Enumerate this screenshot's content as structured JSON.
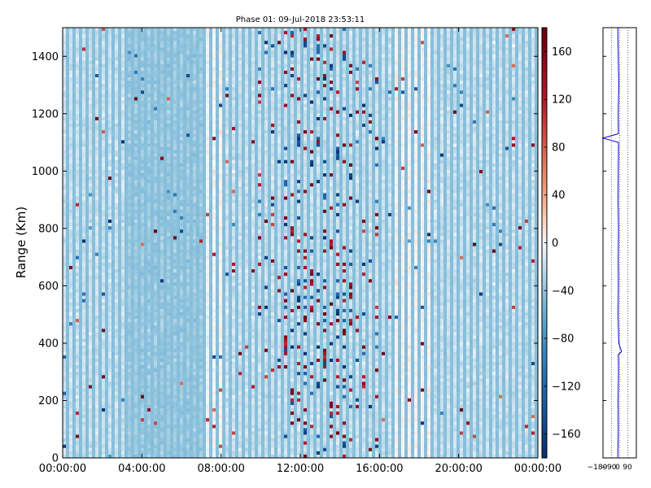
{
  "chart_data": [
    {
      "type": "heatmap",
      "title": "Phase 01: 09-Jul-2018 23:53:11",
      "xlabel": "",
      "ylabel": "Range (Km)",
      "x_ticks": [
        "00:00:00",
        "04:00:00",
        "08:00:00",
        "12:00:00",
        "16:00:00",
        "20:00:00",
        "00:00:00"
      ],
      "x_range": [
        "00:00:00",
        "24:00:00"
      ],
      "y_ticks": [
        0,
        200,
        400,
        600,
        800,
        1000,
        1200,
        1400
      ],
      "ylim": [
        0,
        1500
      ],
      "value_unit": "degrees (phase)",
      "colormap": "RdBu_r",
      "colorbar": {
        "vmin": -180,
        "vmax": 180,
        "ticks": [
          -160,
          -120,
          -80,
          -40,
          0,
          40,
          80,
          120,
          160
        ],
        "tick_labels": [
          "−160",
          "−120",
          "−80",
          "−40",
          "0",
          "40",
          "80",
          "120",
          "160"
        ],
        "colors": {
          "low": "#08306b",
          "mid": "#f7f7f7",
          "high": "#67000d"
        }
      },
      "dominant_values": "mostly between -60 and 30 degrees; higher variance between 10:00 and 16:00",
      "grid": false
    },
    {
      "type": "line",
      "title": "",
      "xlabel": "",
      "ylabel": "",
      "x_ticks": [
        "−180",
        "−90",
        "0",
        "90"
      ],
      "xlim": [
        -180,
        180
      ],
      "ylim": [
        0,
        1500
      ],
      "grid": true,
      "series_color": "#0000cc",
      "series": [
        {
          "name": "",
          "y": [
            0,
            100,
            200,
            300,
            360,
            370,
            400,
            500,
            600,
            700,
            800,
            900,
            1000,
            1100,
            1115,
            1130,
            1200,
            1300,
            1400,
            1500
          ],
          "x": [
            -20,
            -15,
            -18,
            -12,
            -15,
            20,
            -10,
            -18,
            -14,
            -16,
            -12,
            -18,
            -15,
            -12,
            -180,
            -14,
            -16,
            -10,
            -15,
            -20
          ]
        }
      ]
    }
  ]
}
